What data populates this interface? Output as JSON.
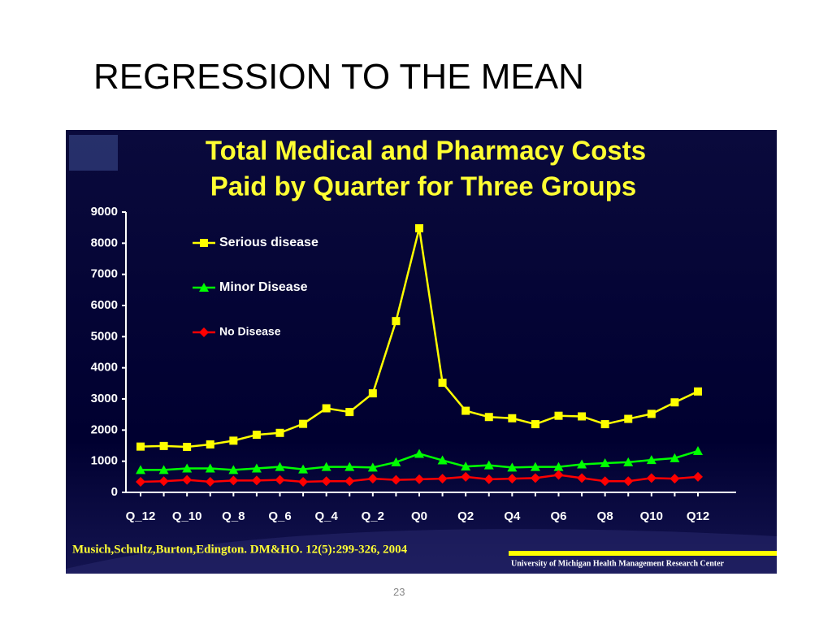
{
  "slide_title": "REGRESSION TO THE MEAN",
  "page_number": "23",
  "chart_data": {
    "type": "line",
    "title": [
      "Total Medical and Pharmacy Costs",
      "Paid by Quarter for Three Groups"
    ],
    "categories": [
      "Q_12",
      null,
      "Q_10",
      null,
      "Q_8",
      null,
      "Q_6",
      null,
      "Q_4",
      null,
      "Q_2",
      null,
      "Q0",
      null,
      "Q2",
      null,
      "Q4",
      null,
      "Q6",
      null,
      "Q8",
      null,
      "Q10",
      null,
      "Q12"
    ],
    "series": [
      {
        "name": "Serious disease",
        "color": "#ffff00",
        "marker": "square",
        "values": [
          1470,
          1490,
          1460,
          1540,
          1660,
          1850,
          1910,
          2200,
          2700,
          2580,
          3180,
          5500,
          8480,
          3520,
          2620,
          2420,
          2380,
          2190,
          2460,
          2440,
          2190,
          2360,
          2520,
          2890,
          3240
        ]
      },
      {
        "name": "Minor Disease",
        "color": "#00ff00",
        "marker": "triangle",
        "values": [
          720,
          720,
          770,
          770,
          720,
          770,
          820,
          740,
          820,
          820,
          800,
          970,
          1240,
          1030,
          830,
          870,
          800,
          820,
          820,
          900,
          940,
          970,
          1040,
          1100,
          1330
        ]
      },
      {
        "name": "No Disease",
        "color": "#ff0000",
        "marker": "diamond",
        "values": [
          340,
          360,
          400,
          340,
          380,
          380,
          400,
          340,
          360,
          360,
          440,
          400,
          420,
          440,
          500,
          420,
          440,
          460,
          560,
          460,
          360,
          360,
          460,
          440,
          500
        ]
      }
    ],
    "ylim": [
      0,
      9000
    ],
    "yticks": [
      0,
      1000,
      2000,
      3000,
      4000,
      5000,
      6000,
      7000,
      8000,
      9000
    ],
    "source": "Musich,Schultz,Burton,Edington. DM&HO. 12(5):299-326, 2004",
    "credit": "University of Michigan Health Management Research Center"
  }
}
